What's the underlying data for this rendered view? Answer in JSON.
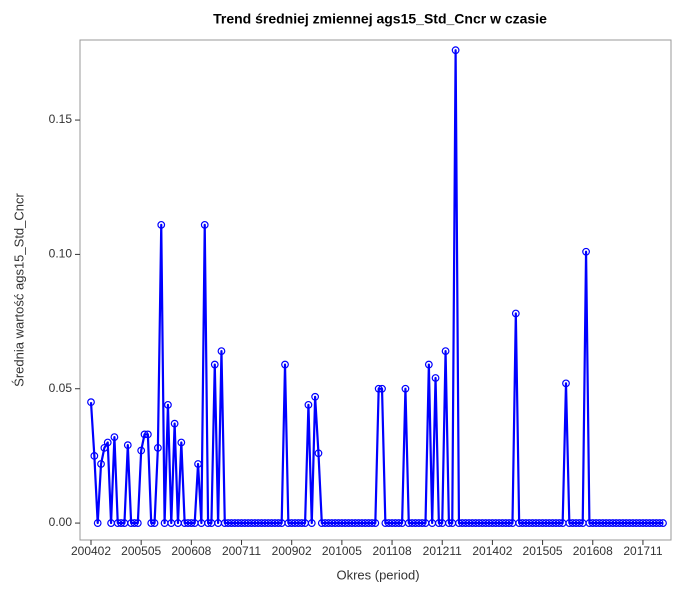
{
  "chart_data": {
    "type": "line",
    "title": "Trend średniej zmiennej ags15_Std_Cncr w czasie",
    "x_label": "Okres (period)",
    "y_label": "Średnia wartość ags15_Std_Cncr",
    "categories": [
      "200402",
      null,
      null,
      null,
      null,
      null,
      null,
      null,
      null,
      null,
      null,
      null,
      null,
      null,
      null,
      "200505",
      null,
      null,
      null,
      null,
      null,
      null,
      null,
      null,
      null,
      null,
      null,
      null,
      null,
      null,
      "200608",
      null,
      null,
      null,
      null,
      null,
      null,
      null,
      null,
      null,
      null,
      null,
      null,
      null,
      null,
      "200711",
      null,
      null,
      null,
      null,
      null,
      null,
      null,
      null,
      null,
      null,
      null,
      null,
      null,
      null,
      "200902",
      null,
      null,
      null,
      null,
      null,
      null,
      null,
      null,
      null,
      null,
      null,
      null,
      null,
      null,
      "201005",
      null,
      null,
      null,
      null,
      null,
      null,
      null,
      null,
      null,
      null,
      null,
      null,
      null,
      null,
      "201108",
      null,
      null,
      null,
      null,
      null,
      null,
      null,
      null,
      null,
      null,
      null,
      null,
      null,
      null,
      "201211",
      null,
      null,
      null,
      null,
      null,
      null,
      null,
      null,
      null,
      null,
      null,
      null,
      null,
      null,
      "201402",
      null,
      null,
      null,
      null,
      null,
      null,
      null,
      null,
      null,
      null,
      null,
      null,
      null,
      null,
      "201505",
      null,
      null,
      null,
      null,
      null,
      null,
      null,
      null,
      null,
      null,
      null,
      null,
      null,
      null,
      "201608",
      null,
      null,
      null,
      null,
      null,
      null,
      null,
      null,
      null,
      null,
      null,
      null,
      null,
      null,
      "201711",
      null,
      null,
      null,
      null,
      null,
      null
    ],
    "series": [
      {
        "color": "#0000ff",
        "values": [
          0.045,
          0.025,
          0,
          0.022,
          0.028,
          0.03,
          0,
          0.032,
          0,
          0,
          0,
          0.029,
          0,
          0,
          0,
          0.027,
          0.033,
          0.033,
          0,
          0,
          0.028,
          0.111,
          0,
          0.044,
          0,
          0.037,
          0,
          0.03,
          0,
          0,
          0,
          0,
          0.022,
          0,
          0.111,
          0,
          0,
          0.059,
          0,
          0.064,
          0,
          0,
          0,
          0,
          0,
          0,
          0,
          0,
          0,
          0,
          0,
          0,
          0,
          0,
          0,
          0,
          0,
          0,
          0.059,
          0,
          0,
          0,
          0,
          0,
          0,
          0.044,
          0,
          0.047,
          0.026,
          0,
          0,
          0,
          0,
          0,
          0,
          0,
          0,
          0,
          0,
          0,
          0,
          0,
          0,
          0,
          0,
          0,
          0.05,
          0.05,
          0,
          0,
          0,
          0,
          0,
          0,
          0.05,
          0,
          0,
          0,
          0,
          0,
          0,
          0.059,
          0,
          0.054,
          0,
          0,
          0.064,
          0,
          0,
          0.176,
          0,
          0,
          0,
          0,
          0,
          0,
          0,
          0,
          0,
          0,
          0,
          0,
          0,
          0,
          0,
          0,
          0,
          0.078,
          0,
          0,
          0,
          0,
          0,
          0,
          0,
          0,
          0,
          0,
          0,
          0,
          0,
          0,
          0.052,
          0,
          0,
          0,
          0,
          0,
          0.101,
          0,
          0,
          0,
          0,
          0,
          0,
          0,
          0,
          0,
          0,
          0,
          0,
          0,
          0,
          0,
          0,
          0,
          0,
          0,
          0,
          0,
          0,
          0
        ]
      }
    ],
    "ylim": [
      -0.0063,
      0.1798
    ],
    "yticks": [
      {
        "value": 0,
        "label": "0.00"
      },
      0.05,
      {
        "value": 0.1,
        "label": "0.10"
      },
      0.15
    ]
  }
}
